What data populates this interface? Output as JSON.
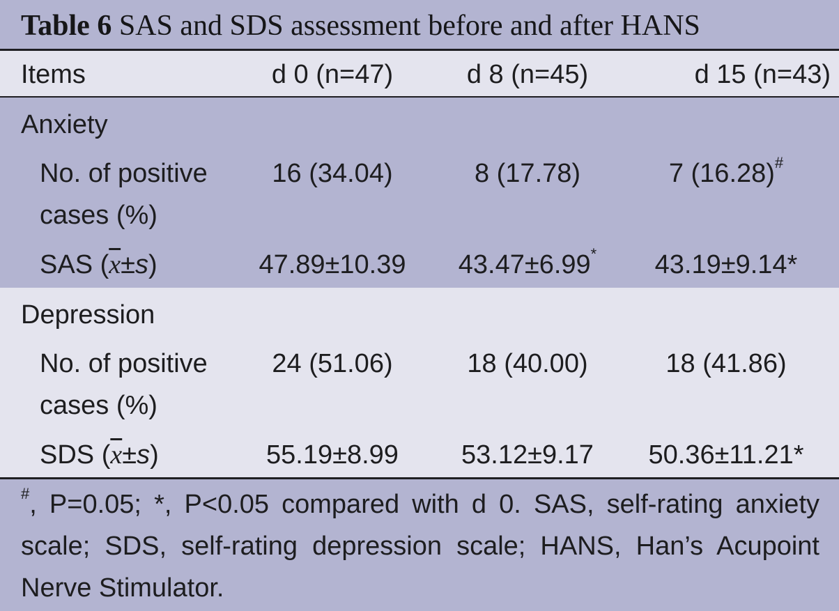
{
  "title": {
    "label": "Table 6",
    "text": "SAS and SDS assessment before and after HANS"
  },
  "header": {
    "items": "Items",
    "d0": "d 0 (n=47)",
    "d8": "d 8 (n=45)",
    "d15": "d 15 (n=43)"
  },
  "anxiety": {
    "label": "Anxiety",
    "positive": {
      "label_line1": "No. of positive",
      "label_line2": "cases (%)",
      "d0": "16 (34.04)",
      "d8": "8 (17.78)",
      "d15": "7 (16.28)",
      "d15_mark": "#"
    },
    "score": {
      "prefix": "SAS (",
      "xbar": "x",
      "pm": "±",
      "s": "s",
      "suffix": ")",
      "d0": "47.89±10.39",
      "d8": "43.47±6.99",
      "d8_mark": "*",
      "d15": "43.19±9.14*"
    }
  },
  "depression": {
    "label": "Depression",
    "positive": {
      "label_line1": "No. of positive",
      "label_line2": "cases (%)",
      "d0": "24 (51.06)",
      "d8": "18 (40.00)",
      "d15": "18 (41.86)"
    },
    "score": {
      "prefix": "SDS (",
      "xbar": "x",
      "pm": "±",
      "s": "s",
      "suffix": ")",
      "d0": "55.19±8.99",
      "d8": "53.12±9.17",
      "d15": "50.36±11.21*"
    }
  },
  "footnote": {
    "mark": "#",
    "text": ", P=0.05; *, P<0.05 compared with d 0. SAS, self-rating anxiety scale; SDS, self-rating depression scale; HANS, Han’s Acupoint Nerve Stimulator."
  },
  "colors": {
    "band": "#b3b4d1",
    "light": "#e4e4ee",
    "rule": "#1e1e22"
  }
}
